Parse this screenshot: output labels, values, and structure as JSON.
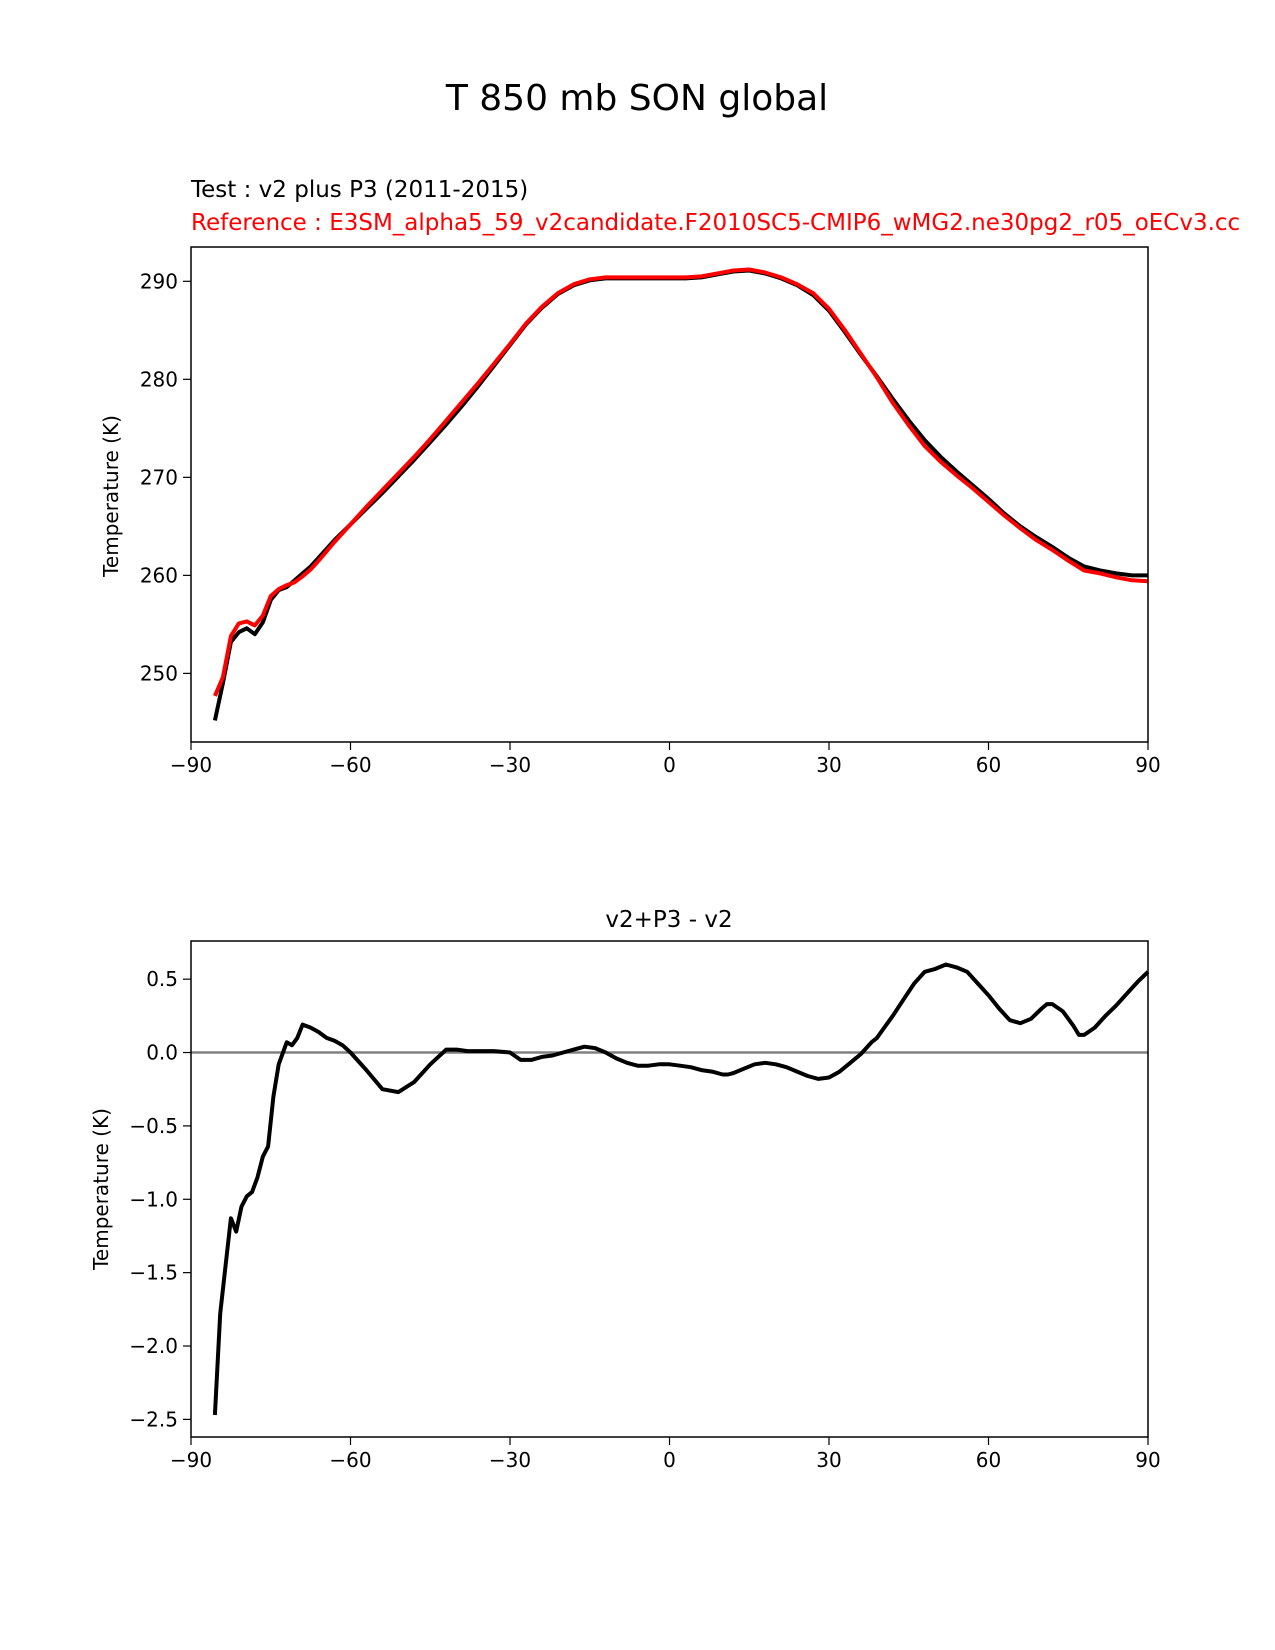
{
  "figure": {
    "suptitle": "T 850 mb SON global"
  },
  "chart_data": [
    {
      "type": "line",
      "title_test": "Test : v2 plus P3 (2011-2015)",
      "title_reference": "Reference : E3SM_alpha5_59_v2candidate.F2010SC5-CMIP6_wMG2.ne30pg2_r05_oECv3.cc",
      "xlabel": "",
      "ylabel": "Temperature (K)",
      "xlim": [
        -90,
        90
      ],
      "ylim": [
        243,
        293.5
      ],
      "xticks": [
        -90,
        -60,
        -30,
        0,
        30,
        60,
        90
      ],
      "yticks": [
        250,
        260,
        270,
        280,
        290
      ],
      "grid": false,
      "colors": {
        "test": "#000000",
        "reference": "#ff0000",
        "axes": "#000000"
      },
      "series": [
        {
          "role": "test",
          "x": [
            -85.5,
            -84,
            -82.5,
            -81,
            -79.5,
            -78,
            -76.5,
            -75,
            -73.5,
            -72,
            -70.5,
            -69,
            -67.5,
            -66,
            -63,
            -60,
            -57,
            -54,
            -51,
            -48,
            -45,
            -42,
            -39,
            -36,
            -33,
            -30,
            -27,
            -24,
            -21,
            -18,
            -15,
            -12,
            -9,
            -6,
            -3,
            0,
            3,
            6,
            9,
            12,
            15,
            18,
            21,
            24,
            27,
            30,
            33,
            36,
            39,
            42,
            45,
            48,
            51,
            54,
            57,
            60,
            63,
            66,
            69,
            72,
            75,
            78,
            81,
            84,
            87,
            90
          ],
          "y": [
            245.2,
            249,
            253.2,
            254.2,
            254.6,
            254.0,
            255.2,
            257.5,
            258.5,
            258.8,
            259.5,
            260.2,
            260.9,
            261.8,
            263.6,
            265.2,
            266.8,
            268.4,
            270.1,
            271.8,
            273.6,
            275.4,
            277.3,
            279.3,
            281.4,
            283.5,
            285.6,
            287.3,
            288.7,
            289.6,
            290.1,
            290.3,
            290.3,
            290.3,
            290.3,
            290.3,
            290.3,
            290.4,
            290.7,
            291.0,
            291.1,
            290.8,
            290.3,
            289.6,
            288.6,
            287.0,
            284.8,
            282.5,
            280.3,
            278.0,
            275.8,
            273.8,
            272.1,
            270.6,
            269.2,
            267.8,
            266.3,
            265.0,
            263.9,
            262.9,
            261.8,
            260.9,
            260.5,
            260.2,
            260.0,
            260.0
          ]
        },
        {
          "role": "reference",
          "x": [
            -85.5,
            -84,
            -82.5,
            -81,
            -79.5,
            -78,
            -76.5,
            -75,
            -73.5,
            -72,
            -70.5,
            -69,
            -67.5,
            -66,
            -63,
            -60,
            -57,
            -54,
            -51,
            -48,
            -45,
            -42,
            -39,
            -36,
            -33,
            -30,
            -27,
            -24,
            -21,
            -18,
            -15,
            -12,
            -9,
            -6,
            -3,
            0,
            3,
            6,
            9,
            12,
            15,
            18,
            21,
            24,
            27,
            30,
            33,
            36,
            39,
            42,
            45,
            48,
            51,
            54,
            57,
            60,
            63,
            66,
            69,
            72,
            75,
            78,
            81,
            84,
            87,
            90
          ],
          "y": [
            247.7,
            249.6,
            253.8,
            255.1,
            255.3,
            254.9,
            255.9,
            257.9,
            258.6,
            259.0,
            259.3,
            259.9,
            260.6,
            261.5,
            263.4,
            265.2,
            267.0,
            268.7,
            270.4,
            272.1,
            273.9,
            275.8,
            277.7,
            279.6,
            281.6,
            283.6,
            285.7,
            287.4,
            288.8,
            289.7,
            290.2,
            290.4,
            290.4,
            290.4,
            290.4,
            290.4,
            290.4,
            290.5,
            290.8,
            291.1,
            291.2,
            290.9,
            290.4,
            289.7,
            288.8,
            287.2,
            285.0,
            282.6,
            280.2,
            277.6,
            275.3,
            273.2,
            271.6,
            270.2,
            268.9,
            267.5,
            266.1,
            264.8,
            263.6,
            262.6,
            261.5,
            260.5,
            260.2,
            259.8,
            259.5,
            259.4
          ]
        }
      ]
    },
    {
      "type": "line",
      "title": "v2+P3 - v2",
      "xlabel": "",
      "ylabel": "Temperature (K)",
      "xlim": [
        -90,
        90
      ],
      "ylim": [
        -2.62,
        0.76
      ],
      "xticks": [
        -90,
        -60,
        -30,
        0,
        30,
        60,
        90
      ],
      "yticks": [
        -2.5,
        -2.0,
        -1.5,
        -1.0,
        -0.5,
        0.0,
        0.5
      ],
      "yticklabels": [
        "−2.5",
        "−2.0",
        "−1.5",
        "−1.0",
        "−0.5",
        "0.0",
        "0.5"
      ],
      "zero_line": 0,
      "grid": false,
      "colors": {
        "difference": "#000000",
        "zero_line": "#808080",
        "axes": "#000000"
      },
      "series": [
        {
          "role": "difference",
          "x": [
            -85.5,
            -84.5,
            -83.5,
            -82.5,
            -81.5,
            -80.5,
            -79.5,
            -78.5,
            -77.5,
            -76.5,
            -75.5,
            -74.5,
            -73.5,
            -72,
            -71,
            -70,
            -69,
            -67.5,
            -66,
            -64.5,
            -63,
            -61.5,
            -60,
            -57,
            -54,
            -51,
            -48,
            -45,
            -42,
            -40,
            -38,
            -36,
            -33,
            -30,
            -28,
            -26,
            -24,
            -22,
            -20,
            -18,
            -16,
            -14,
            -12,
            -10,
            -8,
            -6,
            -4,
            -2,
            0,
            2,
            4,
            6,
            8,
            10,
            11,
            12,
            14,
            16,
            18,
            20,
            22,
            24,
            26,
            27,
            28,
            30,
            32,
            34,
            36,
            38,
            39,
            40,
            42,
            44,
            46,
            48,
            50,
            52,
            54,
            56,
            58,
            60,
            62,
            64,
            66,
            68,
            70,
            71,
            72,
            74,
            76,
            77,
            78,
            80,
            82,
            84,
            86,
            88,
            90
          ],
          "y": [
            -2.47,
            -1.78,
            -1.45,
            -1.13,
            -1.22,
            -1.05,
            -0.98,
            -0.95,
            -0.85,
            -0.71,
            -0.64,
            -0.3,
            -0.08,
            0.07,
            0.05,
            0.1,
            0.19,
            0.17,
            0.14,
            0.1,
            0.08,
            0.05,
            0.0,
            -0.12,
            -0.25,
            -0.27,
            -0.2,
            -0.08,
            0.02,
            0.02,
            0.01,
            0.01,
            0.01,
            0.0,
            -0.05,
            -0.05,
            -0.03,
            -0.02,
            0.0,
            0.02,
            0.04,
            0.03,
            0.0,
            -0.04,
            -0.07,
            -0.09,
            -0.09,
            -0.08,
            -0.08,
            -0.09,
            -0.1,
            -0.12,
            -0.13,
            -0.15,
            -0.15,
            -0.14,
            -0.11,
            -0.08,
            -0.07,
            -0.08,
            -0.1,
            -0.13,
            -0.16,
            -0.17,
            -0.18,
            -0.17,
            -0.13,
            -0.07,
            -0.01,
            0.07,
            0.1,
            0.15,
            0.25,
            0.36,
            0.47,
            0.55,
            0.57,
            0.6,
            0.58,
            0.55,
            0.47,
            0.39,
            0.3,
            0.22,
            0.2,
            0.23,
            0.3,
            0.33,
            0.33,
            0.28,
            0.18,
            0.12,
            0.12,
            0.17,
            0.25,
            0.32,
            0.4,
            0.48,
            0.55
          ]
        }
      ]
    }
  ]
}
